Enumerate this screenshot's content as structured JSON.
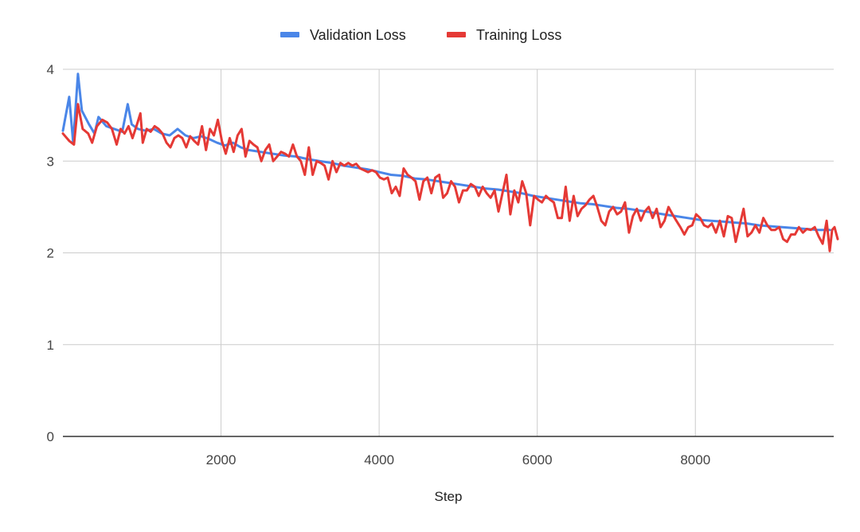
{
  "chart_data": {
    "type": "line",
    "title": "",
    "xlabel": "Step",
    "ylabel": "",
    "xlim": [
      0,
      9750
    ],
    "ylim": [
      0,
      4
    ],
    "x_ticks": [
      2000,
      4000,
      6000,
      8000
    ],
    "y_ticks": [
      0,
      1,
      2,
      3,
      4
    ],
    "grid": true,
    "legend_position": "top",
    "series": [
      {
        "name": "Validation Loss",
        "color": "#4a86e8",
        "points": [
          [
            0,
            3.33
          ],
          [
            80,
            3.7
          ],
          [
            130,
            3.2
          ],
          [
            190,
            3.95
          ],
          [
            240,
            3.55
          ],
          [
            330,
            3.4
          ],
          [
            400,
            3.3
          ],
          [
            450,
            3.48
          ],
          [
            550,
            3.38
          ],
          [
            650,
            3.35
          ],
          [
            750,
            3.32
          ],
          [
            820,
            3.62
          ],
          [
            870,
            3.4
          ],
          [
            950,
            3.35
          ],
          [
            1050,
            3.33
          ],
          [
            1150,
            3.35
          ],
          [
            1250,
            3.3
          ],
          [
            1350,
            3.28
          ],
          [
            1450,
            3.35
          ],
          [
            1550,
            3.28
          ],
          [
            1650,
            3.25
          ],
          [
            1750,
            3.27
          ],
          [
            1850,
            3.24
          ],
          [
            1950,
            3.2
          ],
          [
            2050,
            3.17
          ],
          [
            2150,
            3.2
          ],
          [
            2250,
            3.15
          ],
          [
            2350,
            3.12
          ],
          [
            2500,
            3.1
          ],
          [
            2650,
            3.08
          ],
          [
            2800,
            3.06
          ],
          [
            2950,
            3.05
          ],
          [
            3100,
            3.02
          ],
          [
            3250,
            3.0
          ],
          [
            3400,
            2.98
          ],
          [
            3550,
            2.95
          ],
          [
            3700,
            2.93
          ],
          [
            3850,
            2.91
          ],
          [
            4000,
            2.88
          ],
          [
            4150,
            2.85
          ],
          [
            4300,
            2.84
          ],
          [
            4450,
            2.81
          ],
          [
            4600,
            2.8
          ],
          [
            4750,
            2.78
          ],
          [
            4900,
            2.76
          ],
          [
            5050,
            2.74
          ],
          [
            5200,
            2.72
          ],
          [
            5350,
            2.7
          ],
          [
            5500,
            2.69
          ],
          [
            5650,
            2.67
          ],
          [
            5800,
            2.65
          ],
          [
            5950,
            2.62
          ],
          [
            6100,
            2.6
          ],
          [
            6250,
            2.58
          ],
          [
            6400,
            2.56
          ],
          [
            6550,
            2.54
          ],
          [
            6700,
            2.53
          ],
          [
            6850,
            2.51
          ],
          [
            7000,
            2.49
          ],
          [
            7150,
            2.48
          ],
          [
            7300,
            2.46
          ],
          [
            7450,
            2.44
          ],
          [
            7600,
            2.42
          ],
          [
            7750,
            2.4
          ],
          [
            7900,
            2.38
          ],
          [
            8050,
            2.36
          ],
          [
            8200,
            2.35
          ],
          [
            8350,
            2.34
          ],
          [
            8500,
            2.33
          ],
          [
            8650,
            2.32
          ],
          [
            8800,
            2.3
          ],
          [
            8950,
            2.29
          ],
          [
            9100,
            2.28
          ],
          [
            9250,
            2.27
          ],
          [
            9400,
            2.26
          ],
          [
            9550,
            2.25
          ],
          [
            9700,
            2.25
          ]
        ]
      },
      {
        "name": "Training Loss",
        "color": "#e53935",
        "points": [
          [
            0,
            3.3
          ],
          [
            80,
            3.22
          ],
          [
            140,
            3.18
          ],
          [
            190,
            3.62
          ],
          [
            250,
            3.35
          ],
          [
            320,
            3.3
          ],
          [
            370,
            3.2
          ],
          [
            430,
            3.38
          ],
          [
            500,
            3.45
          ],
          [
            560,
            3.42
          ],
          [
            620,
            3.35
          ],
          [
            680,
            3.18
          ],
          [
            730,
            3.35
          ],
          [
            780,
            3.3
          ],
          [
            830,
            3.38
          ],
          [
            880,
            3.25
          ],
          [
            930,
            3.38
          ],
          [
            980,
            3.52
          ],
          [
            1010,
            3.2
          ],
          [
            1060,
            3.35
          ],
          [
            1110,
            3.32
          ],
          [
            1160,
            3.38
          ],
          [
            1210,
            3.35
          ],
          [
            1260,
            3.3
          ],
          [
            1310,
            3.2
          ],
          [
            1360,
            3.15
          ],
          [
            1410,
            3.25
          ],
          [
            1460,
            3.28
          ],
          [
            1510,
            3.25
          ],
          [
            1560,
            3.15
          ],
          [
            1610,
            3.27
          ],
          [
            1660,
            3.22
          ],
          [
            1710,
            3.18
          ],
          [
            1760,
            3.38
          ],
          [
            1810,
            3.12
          ],
          [
            1860,
            3.35
          ],
          [
            1910,
            3.28
          ],
          [
            1960,
            3.45
          ],
          [
            2010,
            3.22
          ],
          [
            2060,
            3.08
          ],
          [
            2110,
            3.25
          ],
          [
            2160,
            3.1
          ],
          [
            2210,
            3.28
          ],
          [
            2260,
            3.35
          ],
          [
            2310,
            3.05
          ],
          [
            2360,
            3.22
          ],
          [
            2410,
            3.18
          ],
          [
            2460,
            3.15
          ],
          [
            2510,
            3.0
          ],
          [
            2560,
            3.12
          ],
          [
            2610,
            3.18
          ],
          [
            2660,
            3.0
          ],
          [
            2710,
            3.05
          ],
          [
            2760,
            3.1
          ],
          [
            2810,
            3.08
          ],
          [
            2860,
            3.05
          ],
          [
            2910,
            3.18
          ],
          [
            2960,
            3.05
          ],
          [
            3010,
            3.0
          ],
          [
            3060,
            2.85
          ],
          [
            3110,
            3.15
          ],
          [
            3160,
            2.85
          ],
          [
            3210,
            3.0
          ],
          [
            3260,
            2.98
          ],
          [
            3310,
            2.95
          ],
          [
            3360,
            2.8
          ],
          [
            3410,
            3.0
          ],
          [
            3460,
            2.88
          ],
          [
            3510,
            2.98
          ],
          [
            3560,
            2.95
          ],
          [
            3610,
            2.98
          ],
          [
            3660,
            2.95
          ],
          [
            3710,
            2.97
          ],
          [
            3760,
            2.92
          ],
          [
            3810,
            2.9
          ],
          [
            3860,
            2.88
          ],
          [
            3910,
            2.9
          ],
          [
            3960,
            2.88
          ],
          [
            4010,
            2.82
          ],
          [
            4060,
            2.8
          ],
          [
            4110,
            2.82
          ],
          [
            4160,
            2.65
          ],
          [
            4210,
            2.72
          ],
          [
            4260,
            2.62
          ],
          [
            4310,
            2.92
          ],
          [
            4360,
            2.85
          ],
          [
            4410,
            2.82
          ],
          [
            4460,
            2.78
          ],
          [
            4510,
            2.58
          ],
          [
            4560,
            2.78
          ],
          [
            4610,
            2.82
          ],
          [
            4660,
            2.65
          ],
          [
            4710,
            2.82
          ],
          [
            4760,
            2.85
          ],
          [
            4810,
            2.6
          ],
          [
            4860,
            2.65
          ],
          [
            4910,
            2.78
          ],
          [
            4960,
            2.72
          ],
          [
            5010,
            2.55
          ],
          [
            5060,
            2.68
          ],
          [
            5110,
            2.68
          ],
          [
            5160,
            2.75
          ],
          [
            5210,
            2.72
          ],
          [
            5260,
            2.62
          ],
          [
            5310,
            2.72
          ],
          [
            5360,
            2.65
          ],
          [
            5410,
            2.6
          ],
          [
            5460,
            2.68
          ],
          [
            5510,
            2.45
          ],
          [
            5560,
            2.65
          ],
          [
            5610,
            2.85
          ],
          [
            5660,
            2.42
          ],
          [
            5710,
            2.68
          ],
          [
            5760,
            2.55
          ],
          [
            5810,
            2.78
          ],
          [
            5860,
            2.65
          ],
          [
            5910,
            2.3
          ],
          [
            5960,
            2.62
          ],
          [
            6010,
            2.58
          ],
          [
            6060,
            2.55
          ],
          [
            6110,
            2.62
          ],
          [
            6160,
            2.58
          ],
          [
            6210,
            2.55
          ],
          [
            6260,
            2.38
          ],
          [
            6310,
            2.38
          ],
          [
            6360,
            2.72
          ],
          [
            6410,
            2.35
          ],
          [
            6460,
            2.62
          ],
          [
            6510,
            2.4
          ],
          [
            6560,
            2.48
          ],
          [
            6610,
            2.52
          ],
          [
            6660,
            2.58
          ],
          [
            6710,
            2.62
          ],
          [
            6760,
            2.5
          ],
          [
            6810,
            2.35
          ],
          [
            6860,
            2.3
          ],
          [
            6910,
            2.45
          ],
          [
            6960,
            2.5
          ],
          [
            7010,
            2.42
          ],
          [
            7060,
            2.45
          ],
          [
            7110,
            2.55
          ],
          [
            7160,
            2.22
          ],
          [
            7210,
            2.4
          ],
          [
            7260,
            2.48
          ],
          [
            7310,
            2.35
          ],
          [
            7360,
            2.45
          ],
          [
            7410,
            2.5
          ],
          [
            7460,
            2.38
          ],
          [
            7510,
            2.48
          ],
          [
            7560,
            2.28
          ],
          [
            7610,
            2.35
          ],
          [
            7660,
            2.5
          ],
          [
            7710,
            2.42
          ],
          [
            7760,
            2.35
          ],
          [
            7810,
            2.28
          ],
          [
            7860,
            2.2
          ],
          [
            7910,
            2.28
          ],
          [
            7960,
            2.3
          ],
          [
            8010,
            2.42
          ],
          [
            8060,
            2.38
          ],
          [
            8110,
            2.3
          ],
          [
            8160,
            2.28
          ],
          [
            8210,
            2.32
          ],
          [
            8260,
            2.22
          ],
          [
            8310,
            2.35
          ],
          [
            8360,
            2.18
          ],
          [
            8410,
            2.4
          ],
          [
            8460,
            2.38
          ],
          [
            8510,
            2.12
          ],
          [
            8560,
            2.3
          ],
          [
            8610,
            2.48
          ],
          [
            8660,
            2.18
          ],
          [
            8710,
            2.22
          ],
          [
            8760,
            2.3
          ],
          [
            8810,
            2.22
          ],
          [
            8860,
            2.38
          ],
          [
            8910,
            2.3
          ],
          [
            8960,
            2.25
          ],
          [
            9010,
            2.25
          ],
          [
            9060,
            2.28
          ],
          [
            9110,
            2.15
          ],
          [
            9160,
            2.12
          ],
          [
            9210,
            2.2
          ],
          [
            9260,
            2.2
          ],
          [
            9310,
            2.28
          ],
          [
            9360,
            2.22
          ],
          [
            9410,
            2.26
          ],
          [
            9460,
            2.25
          ],
          [
            9510,
            2.28
          ],
          [
            9560,
            2.18
          ],
          [
            9610,
            2.1
          ],
          [
            9660,
            2.35
          ],
          [
            9700,
            2.02
          ],
          [
            9730,
            2.25
          ],
          [
            9760,
            2.28
          ],
          [
            9800,
            2.15
          ]
        ]
      }
    ]
  }
}
